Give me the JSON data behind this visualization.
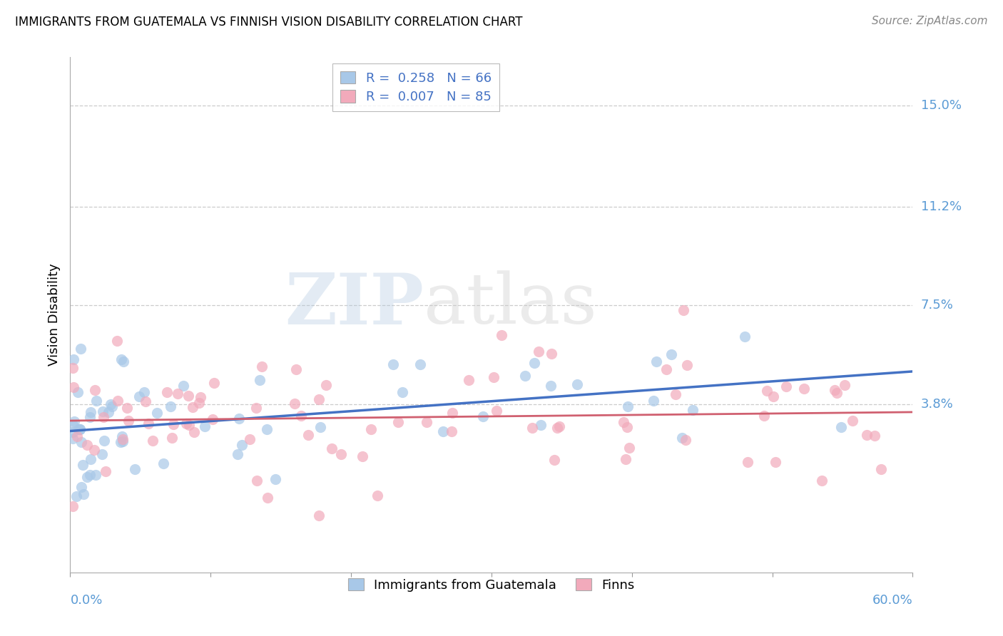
{
  "title": "IMMIGRANTS FROM GUATEMALA VS FINNISH VISION DISABILITY CORRELATION CHART",
  "source": "Source: ZipAtlas.com",
  "ylabel": "Vision Disability",
  "x_min": 0.0,
  "x_max": 60.0,
  "y_min": -2.5,
  "y_max": 16.8,
  "y_ticks": [
    3.8,
    7.5,
    11.2,
    15.0
  ],
  "y_tick_labels": [
    "3.8%",
    "7.5%",
    "11.2%",
    "15.0%"
  ],
  "blue_color": "#A8C8E8",
  "pink_color": "#F2AABB",
  "line_blue": "#4472C4",
  "line_pink": "#D06070",
  "watermark_zip": "ZIP",
  "watermark_atlas": "atlas",
  "series1_label": "R =  0.258   N = 66",
  "series2_label": "R =  0.007   N = 85",
  "bottom_label1": "Immigrants from Guatemala",
  "bottom_label2": "Finns",
  "R_blue": 0.258,
  "N_blue": 66,
  "R_pink": 0.007,
  "N_pink": 85
}
